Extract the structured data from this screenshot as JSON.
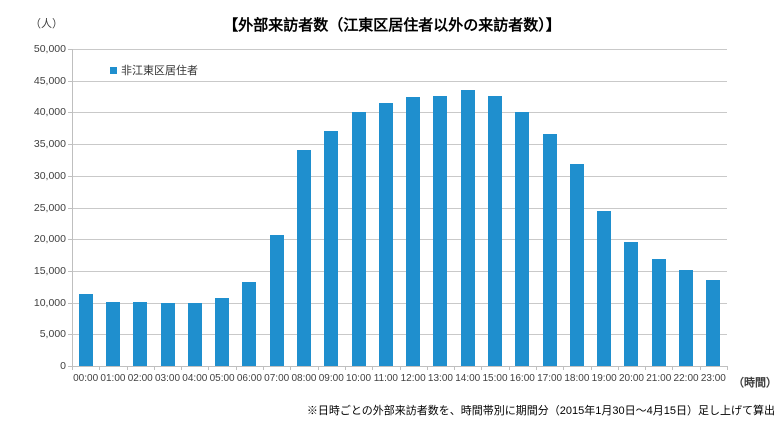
{
  "chart_data": {
    "type": "bar",
    "title": "【外部来訪者数（江東区居住者以外の来訪者数）】",
    "ylabel_unit": "（人）",
    "xlabel_unit": "（時間）",
    "legend": [
      "非江東区居住者"
    ],
    "legend_position": "top-left-inside",
    "footnote": "※日時ごとの外部来訪者数を、時間帯別に期間分（2015年1月30日～4月15日）足し上げて算出",
    "categories": [
      "00:00",
      "01:00",
      "02:00",
      "03:00",
      "04:00",
      "05:00",
      "06:00",
      "07:00",
      "08:00",
      "09:00",
      "10:00",
      "11:00",
      "12:00",
      "13:00",
      "14:00",
      "15:00",
      "16:00",
      "17:00",
      "18:00",
      "19:00",
      "20:00",
      "21:00",
      "22:00",
      "23:00"
    ],
    "values": [
      11400,
      10100,
      10100,
      10000,
      10000,
      10700,
      13300,
      20700,
      34000,
      37000,
      40000,
      41500,
      42500,
      42600,
      43500,
      42600,
      40100,
      36600,
      31900,
      24400,
      19600,
      16900,
      15100,
      13600
    ],
    "ylim": [
      0,
      50000
    ],
    "ytick_step": 5000,
    "grid": true,
    "colors": {
      "bar": "#1F8FCE",
      "grid": "#C9C9C9",
      "axis": "#BFBFBF",
      "text": "#404040",
      "title": "#000000"
    }
  }
}
